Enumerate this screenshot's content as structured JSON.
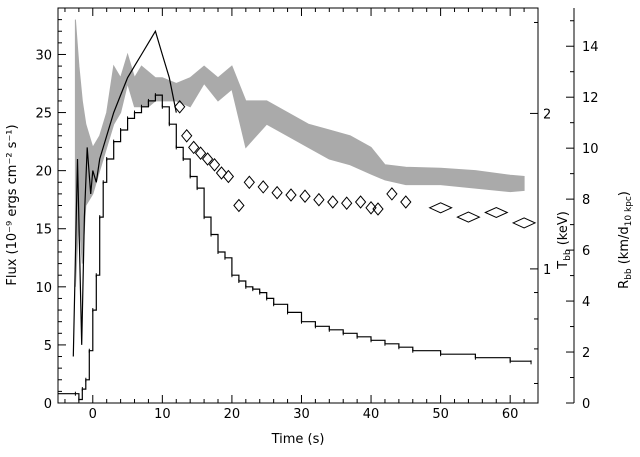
{
  "chart_data": {
    "type": "line",
    "title": "",
    "xlabel": "Time (s)",
    "ylabel": "Flux (10⁻⁹ ergs cm⁻² s⁻¹)",
    "xlim": [
      -5,
      64
    ],
    "ylim": [
      0,
      34
    ],
    "x_ticks": [
      0,
      10,
      20,
      30,
      40,
      50,
      60
    ],
    "y_ticks": [
      0,
      5,
      10,
      15,
      20,
      25,
      30
    ],
    "grid": false,
    "legend": "none",
    "right_axes": [
      {
        "label": "T",
        "label_subscript": "bb",
        "label_rest": " (keV)",
        "scale": "log",
        "ticks": [
          1,
          2
        ]
      },
      {
        "label": "R",
        "label_subscript": "bb",
        "label_rest": " (km/d",
        "label_subscript2": "10 kpc",
        "label_end": ")",
        "ylim": [
          0,
          15.5
        ],
        "ticks": [
          0,
          2,
          4,
          6,
          8,
          10,
          12,
          14
        ]
      }
    ],
    "series": [
      {
        "style": "step-line",
        "color": "#000000",
        "x": [
          -5,
          -2.5,
          -2,
          -1.5,
          -1,
          -0.5,
          0,
          0.5,
          1,
          1.5,
          2,
          3,
          4,
          5,
          6,
          7,
          8,
          9,
          10,
          11,
          12,
          13,
          14,
          15,
          16,
          17,
          18,
          19,
          20,
          21,
          22,
          23,
          24,
          25,
          26,
          28,
          30,
          32,
          34,
          36,
          38,
          40,
          42,
          44,
          46,
          50,
          55,
          60,
          63
        ],
        "y": [
          0.8,
          0.8,
          0.3,
          1.2,
          2.0,
          4.5,
          8.0,
          11.0,
          16.0,
          19.0,
          21.0,
          22.5,
          23.5,
          24.5,
          25.0,
          25.5,
          26.0,
          26.5,
          25.5,
          24.0,
          22.0,
          21.0,
          19.5,
          18.5,
          16.0,
          14.5,
          13.0,
          12.5,
          11.0,
          10.5,
          10.0,
          9.8,
          9.5,
          9.0,
          8.5,
          7.8,
          7.0,
          6.6,
          6.3,
          6.0,
          5.7,
          5.4,
          5.1,
          4.8,
          4.5,
          4.2,
          3.9,
          3.6,
          3.5
        ]
      },
      {
        "style": "line",
        "color": "#000000",
        "x": [
          -2.8,
          -2.2,
          -1.6,
          -1.2,
          -0.8,
          -0.3,
          0,
          0.5,
          1,
          2,
          3,
          4,
          5,
          6,
          7,
          8,
          9,
          10,
          11,
          12
        ],
        "y": [
          4,
          21,
          5,
          16,
          22,
          18,
          20,
          19,
          21,
          23,
          25,
          26.5,
          28,
          29,
          30,
          31,
          32,
          30,
          28,
          25
        ]
      },
      {
        "style": "band",
        "color": "#aaaaaa",
        "x": [
          -2.5,
          -2,
          -1.5,
          -1,
          0,
          1,
          2,
          3,
          4,
          5,
          6,
          7,
          8,
          9,
          10,
          12,
          14,
          16,
          18,
          20,
          22,
          25,
          28,
          31,
          34,
          37,
          40,
          42,
          45,
          50,
          55,
          60,
          62
        ],
        "low": [
          10,
          16,
          12,
          17,
          18,
          20,
          22,
          24,
          25,
          27.5,
          25.5,
          25.5,
          25.5,
          26,
          26,
          26,
          25.5,
          27.5,
          26,
          27,
          22,
          24,
          23,
          22,
          21,
          20.5,
          19.7,
          19.2,
          18.8,
          18.8,
          18.5,
          18.2,
          18.3
        ],
        "high": [
          33,
          29,
          26,
          24,
          22,
          23,
          25,
          29,
          28,
          30,
          28,
          29,
          28.5,
          28,
          28,
          27.5,
          28,
          29,
          28,
          29,
          26,
          26,
          25,
          24,
          23.5,
          23,
          22,
          20.5,
          20.3,
          20.2,
          20,
          19.6,
          19.5
        ]
      },
      {
        "style": "diamond",
        "color": "#000000",
        "x": [
          12.5,
          13.5,
          14.5,
          15.5,
          16.5,
          17.5,
          18.5,
          19.5,
          21,
          22.5,
          24.5,
          26.5,
          28.5,
          30.5,
          32.5,
          34.5,
          36.5,
          38.5,
          40,
          41,
          43,
          45,
          50,
          54,
          58,
          62
        ],
        "y": [
          25.5,
          23.0,
          22.0,
          21.5,
          21.0,
          20.5,
          19.8,
          19.5,
          17.0,
          19.0,
          18.6,
          18.1,
          17.9,
          17.8,
          17.5,
          17.3,
          17.2,
          17.3,
          16.8,
          16.7,
          18.0,
          17.3,
          16.8,
          16.0,
          16.4,
          15.5
        ]
      }
    ]
  }
}
